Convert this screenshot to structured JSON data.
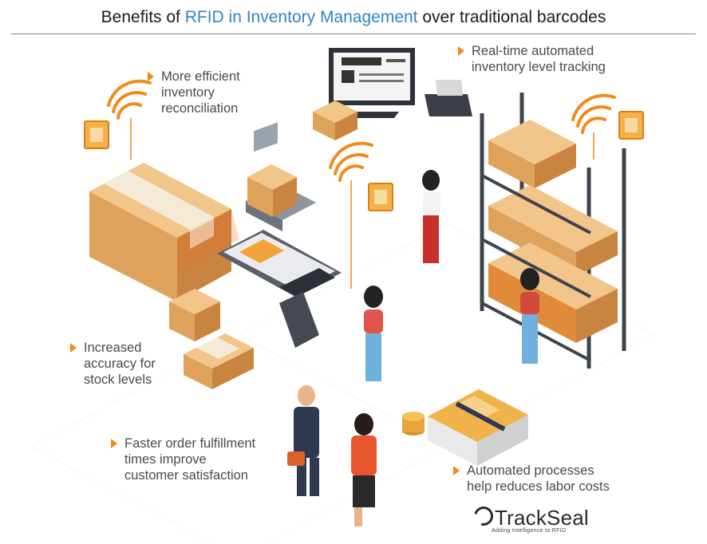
{
  "title": {
    "prefix": "Benefits of ",
    "highlight": "RFID in Inventory Management",
    "suffix": " over traditional barcodes"
  },
  "colors": {
    "accent": "#f28a1a",
    "highlight": "#2f86c4",
    "box": "#e0a35a",
    "shelf": "#4a4f57"
  },
  "benefits": {
    "reconciliation": [
      "More efficient",
      "inventory",
      "reconciliation"
    ],
    "realtime": [
      "Real-time automated",
      "inventory level tracking"
    ],
    "accuracy": [
      "Increased",
      "accuracy for",
      "stock levels"
    ],
    "fulfillment": [
      "Faster order fulfillment",
      "times improve",
      "customer satisfaction"
    ],
    "labor": [
      "Automated processes",
      "help reduces labor costs"
    ]
  },
  "logo": {
    "brand": "TrackSeal",
    "tagline": "Adding Intelligence to RFID"
  },
  "icons": [
    "rfid-tag-icon",
    "wifi-signal-icon",
    "monitor-icon",
    "printer-icon",
    "scanner-icon",
    "money-stack-icon",
    "coin-stack-icon"
  ]
}
